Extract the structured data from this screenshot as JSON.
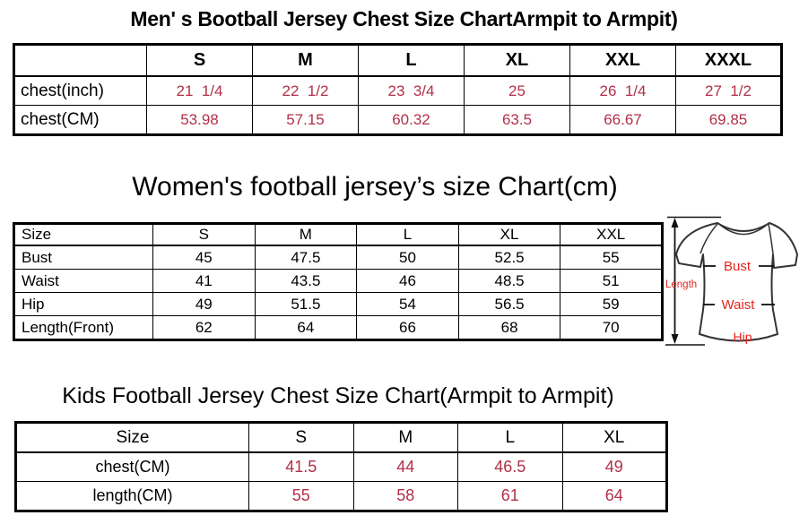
{
  "colors": {
    "table_value_red": "#B03048",
    "diagram_label_red": "#E5241D",
    "line_black": "#000000"
  },
  "sections": {
    "mens": {
      "title": "Men' s Bootball Jersey Chest Size ChartArmpit to Armpit)",
      "table": {
        "columns": [
          "",
          "S",
          "M",
          "L",
          "XL",
          "XXL",
          "XXXL"
        ],
        "rows": [
          [
            "chest(inch)",
            "21  1/4",
            "22  1/2",
            "23  3/4",
            "25",
            "26  1/4",
            "27  1/2"
          ],
          [
            "chest(CM)",
            "53.98",
            "57.15",
            "60.32",
            "63.5",
            "66.67",
            "69.85"
          ]
        ],
        "value_color": "#B03048"
      }
    },
    "womens": {
      "title": "Women's football jersey’s size Chart(cm)",
      "table": {
        "columns": [
          "Size",
          "S",
          "M",
          "L",
          "XL",
          "XXL"
        ],
        "rows": [
          [
            "Bust",
            "45",
            "47.5",
            "50",
            "52.5",
            "55"
          ],
          [
            "Waist",
            "41",
            "43.5",
            "46",
            "48.5",
            "51"
          ],
          [
            "Hip",
            "49",
            "51.5",
            "54",
            "56.5",
            "59"
          ],
          [
            "Length(Front)",
            "62",
            "64",
            "66",
            "68",
            "70"
          ]
        ]
      },
      "diagram": {
        "length_label": "Length",
        "bust_label": "Bust",
        "waist_label": "Waist",
        "hip_label": "Hip"
      }
    },
    "kids": {
      "title": "Kids Football Jersey Chest Size Chart(Armpit to Armpit)",
      "table": {
        "columns": [
          "Size",
          "S",
          "M",
          "L",
          "XL"
        ],
        "rows": [
          [
            "chest(CM)",
            "41.5",
            "44",
            "46.5",
            "49"
          ],
          [
            "length(CM)",
            "55",
            "58",
            "61",
            "64"
          ]
        ],
        "value_color": "#B03048"
      }
    }
  }
}
